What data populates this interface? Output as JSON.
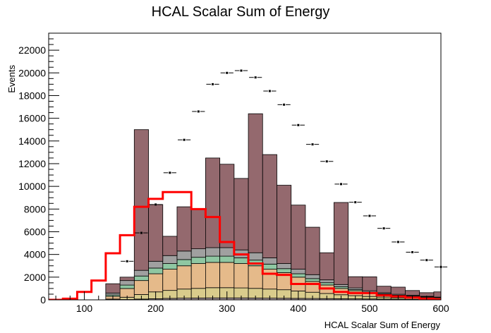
{
  "chart_data": {
    "type": "histogram",
    "title": "HCAL Scalar Sum of Energy",
    "xlabel": "HCAL Scalar Sum of Energy",
    "ylabel": "Events",
    "xlim": [
      50,
      600
    ],
    "ylim": [
      0,
      23500
    ],
    "x_ticks": [
      100,
      200,
      300,
      400,
      500,
      600
    ],
    "y_ticks": [
      0,
      2000,
      4000,
      6000,
      8000,
      10000,
      12000,
      14000,
      16000,
      18000,
      20000,
      22000
    ],
    "grid": false,
    "bin_edges": [
      50,
      70,
      90,
      110,
      130,
      150,
      170,
      190,
      210,
      230,
      250,
      270,
      290,
      310,
      330,
      350,
      370,
      390,
      410,
      430,
      450,
      470,
      490,
      510,
      530,
      550,
      570,
      590,
      610
    ],
    "stacked_series": [
      {
        "color": "#ab9c9f",
        "values": [
          0,
          0,
          0,
          0,
          10,
          30,
          70,
          100,
          130,
          150,
          160,
          170,
          170,
          170,
          160,
          150,
          140,
          130,
          120,
          110,
          100,
          90,
          80,
          70,
          60,
          50,
          40,
          30
        ]
      },
      {
        "color": "#d9cc8c",
        "values": [
          0,
          0,
          0,
          0,
          60,
          200,
          400,
          600,
          700,
          800,
          850,
          900,
          900,
          880,
          850,
          800,
          750,
          650,
          550,
          450,
          350,
          280,
          220,
          170,
          130,
          100,
          80,
          60
        ]
      },
      {
        "color": "#e5ba8a",
        "values": [
          0,
          0,
          0,
          0,
          240,
          770,
          1230,
          1600,
          1870,
          2050,
          2190,
          2230,
          2230,
          2150,
          1990,
          1750,
          1510,
          1220,
          950,
          750,
          550,
          430,
          300,
          230,
          170,
          150,
          110,
          90
        ]
      },
      {
        "color": "#8fc7a2",
        "values": [
          0,
          0,
          0,
          0,
          120,
          300,
          400,
          500,
          500,
          550,
          550,
          550,
          550,
          500,
          500,
          450,
          350,
          300,
          250,
          200,
          150,
          100,
          80,
          60,
          50,
          40,
          30,
          20
        ]
      },
      {
        "color": "#a0a0a0",
        "values": [
          0,
          0,
          0,
          0,
          170,
          400,
          500,
          600,
          700,
          750,
          750,
          750,
          750,
          700,
          650,
          550,
          450,
          400,
          350,
          250,
          200,
          150,
          120,
          100,
          80,
          60,
          50,
          40
        ]
      },
      {
        "color": "#94696e",
        "values": [
          0,
          0,
          0,
          0,
          820,
          300,
          12400,
          5000,
          1700,
          3900,
          3500,
          7900,
          7350,
          6300,
          12250,
          9100,
          6900,
          5650,
          4180,
          2390,
          7230,
          990,
          1230,
          570,
          630,
          420,
          320,
          460
        ]
      }
    ],
    "signal_series": {
      "color": "#ff0000",
      "values": [
        0,
        100,
        700,
        1700,
        4100,
        5700,
        8200,
        8900,
        9500,
        9500,
        8000,
        7300,
        5100,
        4000,
        3200,
        2300,
        2200,
        1400,
        1400,
        1000,
        700,
        600,
        600,
        400,
        300,
        200,
        100,
        50
      ]
    },
    "data_points": {
      "x": [
        160,
        180,
        200,
        220,
        240,
        260,
        280,
        300,
        320,
        340,
        360,
        380,
        400,
        420,
        440,
        460,
        480,
        500,
        520,
        540,
        560,
        580,
        600
      ],
      "y": [
        3400,
        5900,
        8400,
        11200,
        14100,
        16600,
        19000,
        20000,
        20200,
        19600,
        18400,
        17200,
        15400,
        13700,
        12200,
        10200,
        8600,
        7400,
        6300,
        5100,
        4200,
        3500,
        2900
      ]
    }
  }
}
